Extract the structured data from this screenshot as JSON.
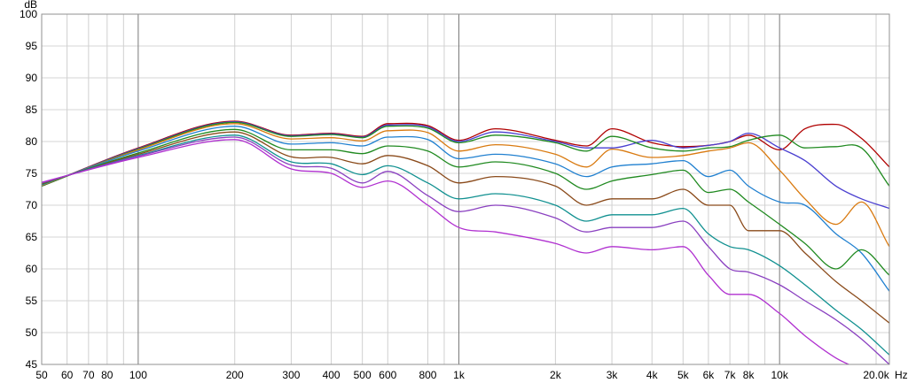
{
  "chart_data": {
    "type": "line",
    "title": "",
    "ylabel": "dB",
    "xlabel": "Hz",
    "xscale": "log",
    "xlim": [
      50,
      22000
    ],
    "ylim": [
      45,
      100
    ],
    "grid": true,
    "y_ticks": [
      {
        "v": 45,
        "label": "45"
      },
      {
        "v": 50,
        "label": "50"
      },
      {
        "v": 55,
        "label": "55"
      },
      {
        "v": 60,
        "label": "60"
      },
      {
        "v": 65,
        "label": "65"
      },
      {
        "v": 70,
        "label": "70"
      },
      {
        "v": 75,
        "label": "75"
      },
      {
        "v": 80,
        "label": "80"
      },
      {
        "v": 85,
        "label": "85"
      },
      {
        "v": 90,
        "label": "90"
      },
      {
        "v": 95,
        "label": "95"
      },
      {
        "v": 100,
        "label": "100"
      }
    ],
    "x_ticks": [
      {
        "v": 50,
        "label": "50"
      },
      {
        "v": 60,
        "label": "60"
      },
      {
        "v": 70,
        "label": "70"
      },
      {
        "v": 80,
        "label": "80"
      },
      {
        "v": 100,
        "label": "100"
      },
      {
        "v": 200,
        "label": "200"
      },
      {
        "v": 300,
        "label": "300"
      },
      {
        "v": 400,
        "label": "400"
      },
      {
        "v": 500,
        "label": "500"
      },
      {
        "v": 600,
        "label": "600"
      },
      {
        "v": 800,
        "label": "800"
      },
      {
        "v": 1000,
        "label": "1k"
      },
      {
        "v": 2000,
        "label": "2k"
      },
      {
        "v": 3000,
        "label": "3k"
      },
      {
        "v": 4000,
        "label": "4k"
      },
      {
        "v": 5000,
        "label": "5k"
      },
      {
        "v": 6000,
        "label": "6k"
      },
      {
        "v": 7000,
        "label": "7k"
      },
      {
        "v": 8000,
        "label": "8k"
      },
      {
        "v": 10000,
        "label": "10k"
      },
      {
        "v": 20000,
        "label": "20.0k"
      }
    ],
    "minor_grid": [
      90,
      900,
      9000
    ],
    "major_grid": [
      100,
      1000,
      10000
    ],
    "x": [
      50,
      100,
      200,
      300,
      400,
      500,
      600,
      800,
      1000,
      1300,
      2000,
      2500,
      3000,
      4000,
      5000,
      6000,
      7000,
      8000,
      10000,
      12000,
      15000,
      18000,
      22000
    ],
    "series": [
      {
        "color": "#b00000",
        "values": [
          73.0,
          79.0,
          83.2,
          81.0,
          81.3,
          80.8,
          82.8,
          82.5,
          80.2,
          82.0,
          80.2,
          79.3,
          82.0,
          79.8,
          79.2,
          79.4,
          80.0,
          81.0,
          78.7,
          82.0,
          82.7,
          80.5,
          76.0
        ]
      },
      {
        "color": "#4a3fd0",
        "values": [
          73.0,
          78.9,
          83.1,
          80.9,
          81.2,
          80.7,
          82.6,
          82.3,
          80.0,
          81.5,
          80.0,
          79.0,
          79.0,
          80.2,
          79.0,
          79.4,
          80.0,
          81.3,
          79.0,
          77.0,
          73.0,
          71.0,
          69.5
        ]
      },
      {
        "color": "#208a20",
        "values": [
          73.0,
          78.8,
          83.0,
          80.8,
          81.1,
          80.6,
          82.4,
          82.1,
          79.8,
          81.0,
          79.8,
          78.5,
          80.8,
          79.0,
          78.5,
          79.0,
          79.2,
          80.2,
          81.0,
          79.0,
          79.2,
          79.0,
          73.0
        ]
      },
      {
        "color": "#d97a10",
        "values": [
          73.1,
          78.7,
          82.8,
          80.4,
          80.6,
          80.1,
          81.7,
          81.4,
          78.5,
          79.5,
          78.0,
          76.0,
          78.8,
          77.5,
          77.8,
          78.5,
          79.0,
          79.8,
          75.5,
          71.0,
          67.0,
          70.5,
          63.5
        ]
      },
      {
        "color": "#2080d0",
        "values": [
          73.2,
          78.5,
          82.4,
          79.6,
          79.8,
          79.3,
          80.7,
          80.3,
          77.3,
          78.0,
          76.5,
          74.5,
          76.0,
          76.5,
          77.0,
          74.5,
          75.5,
          73.0,
          70.5,
          70.0,
          65.5,
          62.5,
          56.5
        ]
      },
      {
        "color": "#208a20",
        "values": [
          73.3,
          78.2,
          81.9,
          78.7,
          78.7,
          78.1,
          79.3,
          78.5,
          76.0,
          76.8,
          75.0,
          72.5,
          73.8,
          74.8,
          75.5,
          72.0,
          72.5,
          70.5,
          67.0,
          64.0,
          60.0,
          63.0,
          59.0
        ]
      },
      {
        "color": "#8a4a1a",
        "values": [
          73.4,
          78.0,
          81.5,
          77.6,
          77.5,
          76.5,
          77.8,
          76.2,
          73.5,
          74.5,
          73.0,
          70.0,
          71.0,
          71.0,
          72.5,
          70.0,
          70.0,
          66.0,
          66.0,
          62.5,
          58.0,
          55.0,
          51.5
        ]
      },
      {
        "color": "#109090",
        "values": [
          73.5,
          77.8,
          81.0,
          76.8,
          76.5,
          74.8,
          76.2,
          73.5,
          71.0,
          71.8,
          70.0,
          67.5,
          68.5,
          68.5,
          69.5,
          65.5,
          63.5,
          63.0,
          60.5,
          57.5,
          53.5,
          50.5,
          46.5
        ]
      },
      {
        "color": "#8a40c0",
        "values": [
          73.5,
          77.7,
          80.7,
          76.3,
          75.8,
          73.5,
          75.3,
          71.5,
          69.0,
          70.0,
          68.0,
          65.8,
          66.5,
          66.5,
          67.5,
          63.5,
          60.0,
          59.5,
          57.5,
          55.0,
          52.0,
          49.0,
          45.0
        ]
      },
      {
        "color": "#b030d0",
        "values": [
          73.6,
          77.5,
          80.3,
          75.7,
          75.0,
          72.8,
          73.8,
          70.0,
          66.5,
          65.8,
          64.0,
          62.5,
          63.5,
          63.0,
          63.5,
          59.0,
          56.0,
          56.0,
          53.0,
          49.5,
          46.0,
          44.0,
          41.0
        ]
      }
    ]
  }
}
